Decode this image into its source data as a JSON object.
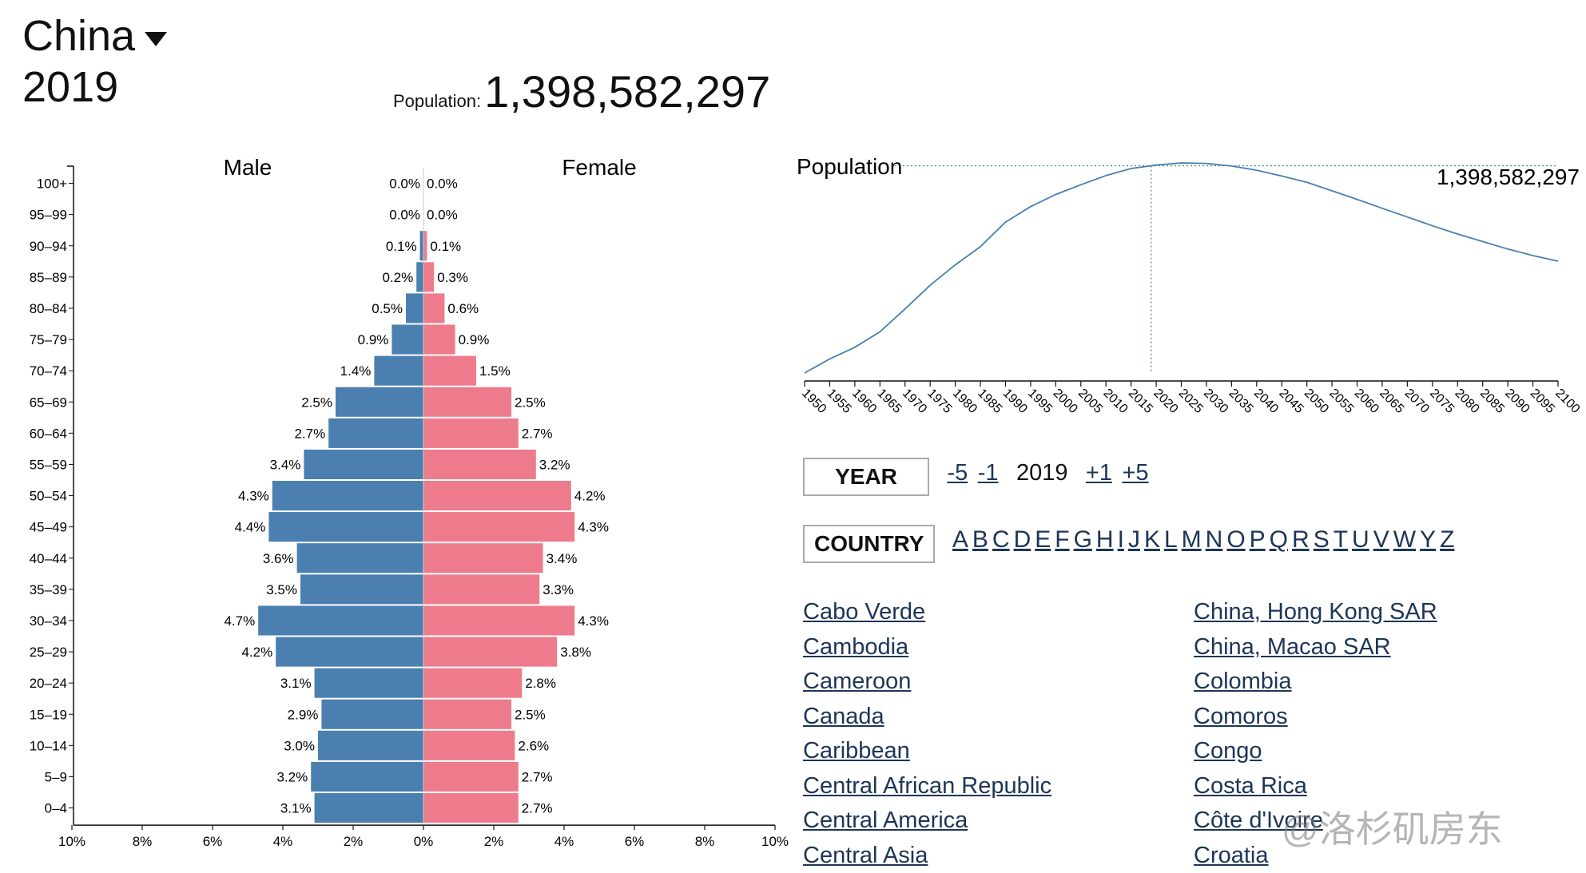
{
  "header": {
    "country": "China",
    "year": "2019",
    "population_label": "Population:",
    "population_value": "1,398,582,297"
  },
  "chart_data": [
    {
      "type": "bar",
      "subtype": "population-pyramid",
      "male_label": "Male",
      "female_label": "Female",
      "categories": [
        "100+",
        "95–99",
        "90–94",
        "85–89",
        "80–84",
        "75–79",
        "70–74",
        "65–69",
        "60–64",
        "55–59",
        "50–54",
        "45–49",
        "40–44",
        "35–39",
        "30–34",
        "25–29",
        "20–24",
        "15–19",
        "10–14",
        "5–9",
        "0–4"
      ],
      "series": [
        {
          "name": "Male",
          "color": "#4a7fb0",
          "values": [
            0.0,
            0.0,
            0.1,
            0.2,
            0.5,
            0.9,
            1.4,
            2.5,
            2.7,
            3.4,
            4.3,
            4.4,
            3.6,
            3.5,
            4.7,
            4.2,
            3.1,
            2.9,
            3.0,
            3.2,
            3.1
          ]
        },
        {
          "name": "Female",
          "color": "#ee7b8b",
          "values": [
            0.0,
            0.0,
            0.1,
            0.3,
            0.6,
            0.9,
            1.5,
            2.5,
            2.7,
            3.2,
            4.2,
            4.3,
            3.4,
            3.3,
            4.3,
            3.8,
            2.8,
            2.5,
            2.6,
            2.7,
            2.7
          ]
        }
      ],
      "xlim": [
        -10,
        10
      ],
      "xticks": [
        "10%",
        "8%",
        "6%",
        "4%",
        "2%",
        "0%",
        "2%",
        "4%",
        "6%",
        "8%",
        "10%"
      ],
      "value_suffix": "%"
    },
    {
      "type": "line",
      "title": "Population",
      "value_label": "1,398,582,297",
      "color": "#4a7fb0",
      "marker_year": 2019,
      "x": [
        1950,
        1955,
        1960,
        1965,
        1970,
        1975,
        1980,
        1985,
        1990,
        1995,
        2000,
        2005,
        2010,
        2015,
        2020,
        2025,
        2030,
        2035,
        2040,
        2045,
        2050,
        2055,
        2060,
        2065,
        2070,
        2075,
        2080,
        2085,
        2090,
        2095,
        2100
      ],
      "y": [
        554,
        612,
        660,
        724,
        818,
        916,
        1000,
        1075,
        1176,
        1240,
        1290,
        1330,
        1368,
        1397,
        1411,
        1420,
        1418,
        1407,
        1390,
        1366,
        1340,
        1305,
        1270,
        1233,
        1197,
        1161,
        1127,
        1096,
        1065,
        1038,
        1015
      ],
      "ylim": [
        554,
        1420
      ],
      "xtick_labels": [
        "1950",
        "1955",
        "1960",
        "1965",
        "1970",
        "1975",
        "1980",
        "1985",
        "1990",
        "1995",
        "2000",
        "2005",
        "2010",
        "2015",
        "2020",
        "2025",
        "2030",
        "2035",
        "2040",
        "2045",
        "2050",
        "2055",
        "2060",
        "2065",
        "2070",
        "2075",
        "2080",
        "2085",
        "2090",
        "2095",
        "2100"
      ]
    }
  ],
  "year_control": {
    "button_label": "YEAR",
    "minus5": "-5",
    "minus1": "-1",
    "current": "2019",
    "plus1": "+1",
    "plus5": "+5"
  },
  "country_control": {
    "button_label": "COUNTRY",
    "letters": [
      "A",
      "B",
      "C",
      "D",
      "E",
      "F",
      "G",
      "H",
      "I",
      "J",
      "K",
      "L",
      "M",
      "N",
      "O",
      "P",
      "Q",
      "R",
      "S",
      "T",
      "U",
      "V",
      "W",
      "Y",
      "Z"
    ]
  },
  "country_list": {
    "col1": [
      "Cabo Verde",
      "Cambodia",
      "Cameroon",
      "Canada",
      "Caribbean",
      "Central African Republic",
      "Central America",
      "Central Asia"
    ],
    "col2": [
      "China, Hong Kong SAR",
      "China, Macao SAR",
      "Colombia",
      "Comoros",
      "Congo",
      "Costa Rica",
      "Côte d'Ivoire",
      "Croatia"
    ]
  },
  "watermark": "@洛杉矶房东"
}
